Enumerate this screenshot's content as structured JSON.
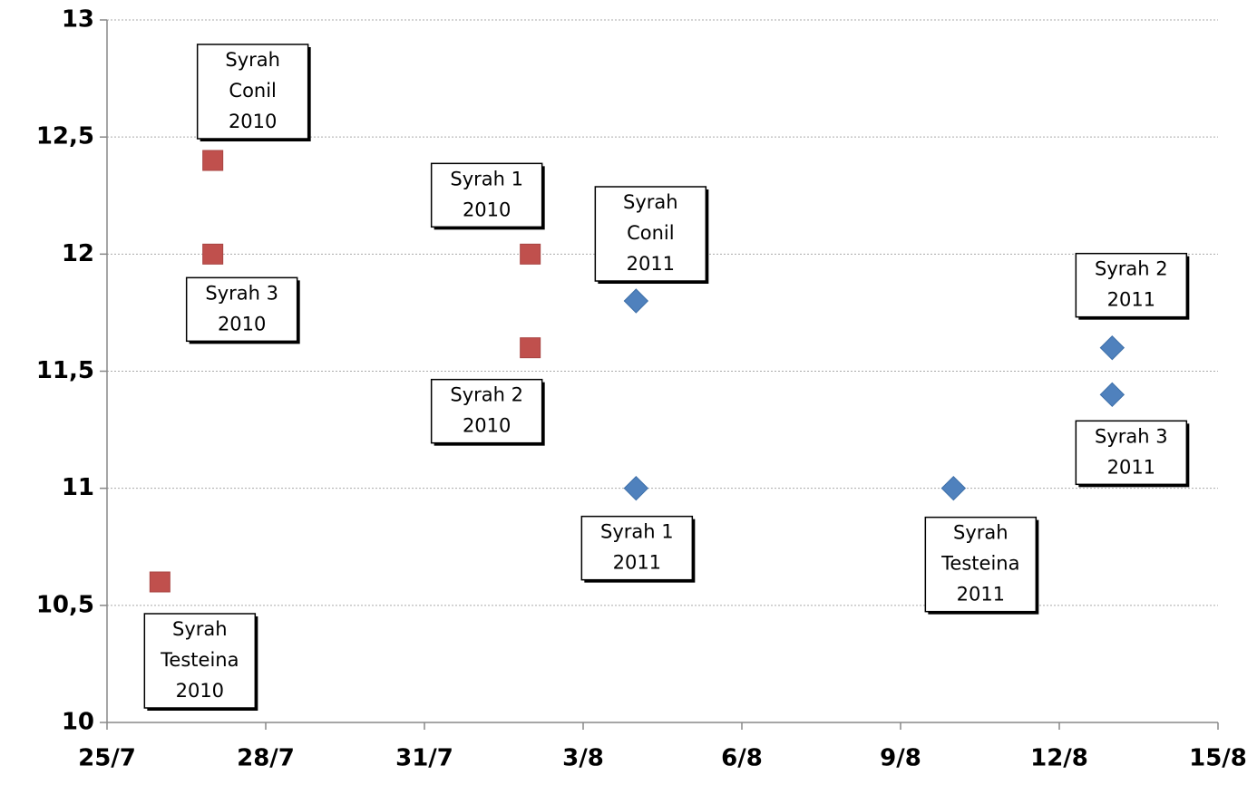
{
  "chart_data": {
    "type": "scatter",
    "xlim": [
      "25/7",
      "15/8"
    ],
    "xticks": [
      "25/7",
      "28/7",
      "31/7",
      "3/8",
      "6/8",
      "9/8",
      "12/8",
      "15/8"
    ],
    "ylim": [
      10,
      13
    ],
    "yticks": [
      10,
      {
        "value": 10.5,
        "label": "10,5"
      },
      11,
      {
        "value": 11.5,
        "label": "11,5"
      },
      12,
      {
        "value": 12.5,
        "label": "12,5"
      },
      13
    ],
    "grid": true,
    "series": [
      {
        "color": "#c0504d",
        "marker": "square",
        "x": [
          "26/7",
          "27/7",
          "27/7",
          "2/8",
          "2/8"
        ],
        "values": [
          10.6,
          12.4,
          12.0,
          12.0,
          11.6
        ],
        "labels": [
          [
            "Syrah",
            "Testeina",
            "2010"
          ],
          [
            "Syrah",
            "Conil",
            "2010"
          ],
          [
            "Syrah 3",
            "2010"
          ],
          [
            "Syrah 1",
            "2010"
          ],
          [
            "Syrah 2",
            "2010"
          ]
        ]
      },
      {
        "color": "#4f81bd",
        "marker": "diamond",
        "x": [
          "4/8",
          "4/8",
          "10/8",
          "13/8",
          "13/8"
        ],
        "values": [
          11.8,
          11.0,
          11.0,
          11.6,
          11.4
        ],
        "labels": [
          [
            "Syrah",
            "Conil",
            "2011"
          ],
          [
            "Syrah 1",
            "2011"
          ],
          [
            "Syrah",
            "Testeina",
            "2011"
          ],
          [
            "Syrah 2",
            "2011"
          ],
          [
            "Syrah 3",
            "2011"
          ]
        ]
      }
    ]
  }
}
